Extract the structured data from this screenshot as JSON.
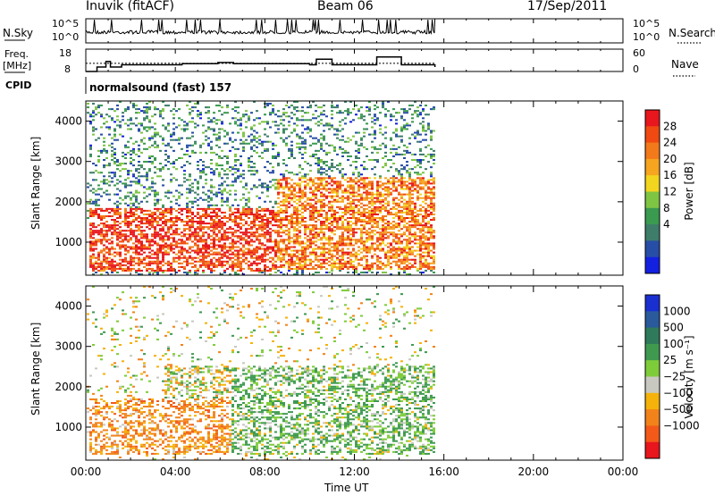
{
  "header": {
    "station": "Inuvik (fitACF)",
    "beam": "Beam 06",
    "date": "17/Sep/2011"
  },
  "top_panels": {
    "nsky_label": "N.Sky",
    "nsky_ticks": [
      "10^5",
      "10^0"
    ],
    "nsearch_label": "N.Search",
    "freq_label": "Freq.",
    "freq_unit": "[MHz]",
    "freq_ticks": [
      "18",
      "8"
    ],
    "nave_label": "Nave",
    "nave_ticks": [
      "60",
      "0"
    ],
    "cpid_label": "CPID",
    "cpid_text": "normalsound (fast) 157"
  },
  "axes": {
    "x_label": "Time UT",
    "x_ticks": [
      "00:00",
      "04:00",
      "08:00",
      "12:00",
      "16:00",
      "20:00",
      "00:00"
    ],
    "y_label": "Slant Range [km]",
    "y_ticks": [
      "1000",
      "2000",
      "3000",
      "4000"
    ]
  },
  "power_colorbar": {
    "label": "Power [dB]",
    "ticks": [
      "28",
      "24",
      "20",
      "16",
      "12",
      "8",
      "4"
    ],
    "colors": [
      "#e8161d",
      "#f04a12",
      "#f37a1a",
      "#f5a51f",
      "#f2d51e",
      "#7fc544",
      "#3a9a50",
      "#3f7d6b",
      "#274ea6",
      "#1420e0"
    ]
  },
  "velocity_colorbar": {
    "label": "Velocity [m s⁻¹]",
    "ticks": [
      "1000",
      "500",
      "100",
      "25",
      "−25",
      "−100",
      "−500",
      "−1000"
    ],
    "colors": [
      "#1a2fd0",
      "#2a5a9c",
      "#2f7a5a",
      "#3f9a50",
      "#7fcc3a",
      "#c8c8c0",
      "#f5b20a",
      "#f2831a",
      "#f35a1a",
      "#e8161d"
    ]
  },
  "chart_data": [
    {
      "type": "line",
      "title": "N.Sky",
      "xlabel": "Time UT",
      "ylabel": "N.Sky",
      "x_range_hours": [
        0,
        24
      ],
      "data_extent_hours": [
        0,
        15.6
      ],
      "note_values": "noise level mostly near 10^1, with spikes"
    },
    {
      "type": "line",
      "series": [
        {
          "name": "Freq.",
          "x": [
            0,
            0.5,
            0.9,
            1.1,
            1.6,
            4.3,
            5.9,
            6.6,
            10.0,
            10.3,
            11.0,
            12.7,
            13.0,
            14.1,
            15.6
          ],
          "values": [
            8,
            10,
            12.5,
            10,
            11,
            11.5,
            12,
            11.5,
            11,
            13.5,
            11,
            11,
            14.5,
            11,
            10
          ]
        },
        {
          "name": "Nave",
          "x": [
            0,
            15.6
          ],
          "values": [
            22,
            22
          ]
        }
      ],
      "xlabel": "Time UT",
      "ylim_freq": [
        8,
        18
      ],
      "ylim_nave": [
        0,
        60
      ]
    },
    {
      "type": "heatmap",
      "title": "Power [dB]",
      "xlabel": "Time UT",
      "ylabel": "Slant Range [km]",
      "x_range_hours": [
        0,
        24
      ],
      "ylim": [
        180,
        4500
      ],
      "data_extent_hours": [
        0,
        15.6
      ],
      "color_range": [
        0,
        30
      ],
      "regions": [
        {
          "t0": 0.1,
          "t1": 8.5,
          "r0": 250,
          "r1": 1800,
          "power": 28
        },
        {
          "t0": 8.5,
          "t1": 15.5,
          "r0": 300,
          "r1": 2600,
          "power": 24
        },
        {
          "t0": 0.1,
          "t1": 15.5,
          "r0": 180,
          "r1": 4400,
          "power": 10
        }
      ]
    },
    {
      "type": "heatmap",
      "title": "Velocity [m s⁻¹]",
      "xlabel": "Time UT",
      "ylabel": "Slant Range [km]",
      "x_range_hours": [
        0,
        24
      ],
      "ylim": [
        180,
        4500
      ],
      "data_extent_hours": [
        0,
        15.6
      ],
      "color_range": [
        -1000,
        1000
      ],
      "regions": [
        {
          "t0": 0.1,
          "t1": 6.5,
          "r0": 300,
          "r1": 1700,
          "velocity": -150
        },
        {
          "t0": 6.5,
          "t1": 15.5,
          "r0": 300,
          "r1": 2500,
          "velocity": 100
        },
        {
          "t0": 3.5,
          "t1": 15.5,
          "r0": 1700,
          "r1": 2500,
          "velocity": 0
        }
      ]
    }
  ]
}
